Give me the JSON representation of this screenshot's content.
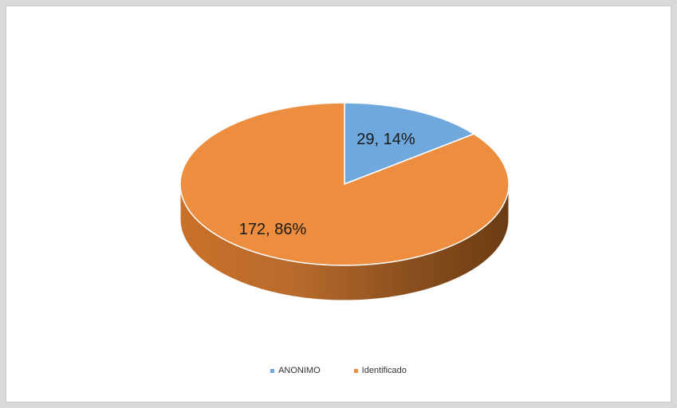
{
  "chart_data": {
    "type": "pie",
    "title": "",
    "categories": [
      "ANONIMO",
      "Identificado"
    ],
    "values": [
      29,
      172
    ],
    "percentages": [
      14,
      86
    ],
    "data_labels": [
      "29, 14%",
      "172, 86%"
    ],
    "colors": [
      "#6fa8dc",
      "#ed8d3f"
    ],
    "legend_position": "bottom",
    "style": "3d"
  },
  "legend": [
    {
      "label": "ANONIMO",
      "color": "#6fa8dc"
    },
    {
      "label": "Identificado",
      "color": "#ed8d3f"
    }
  ]
}
